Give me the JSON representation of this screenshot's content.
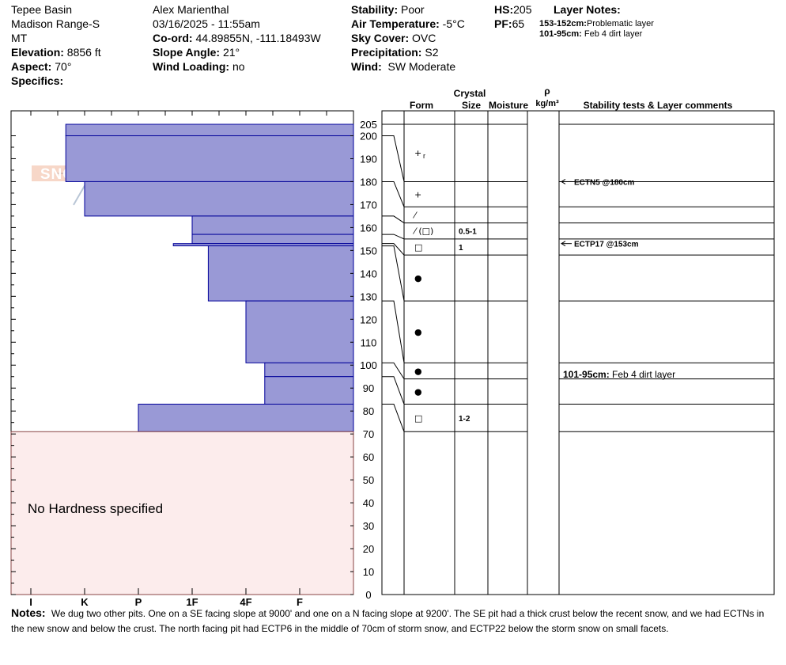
{
  "header": {
    "location": "Tepee Basin",
    "range": "Madison Range-S",
    "state": "MT",
    "elevation_label": "Elevation:",
    "elevation": "8856 ft",
    "aspect_label": "Aspect:",
    "aspect": "70°",
    "specifics_label": "Specifics:",
    "observer": "Alex Marienthal",
    "datetime": "03/16/2025 - 11:55am",
    "coord_label": "Co-ord:",
    "coord": "44.89855N, -111.18493W",
    "slope_label": "Slope Angle:",
    "slope": "21°",
    "wind_loading_label": "Wind Loading:",
    "wind_loading": "no",
    "stability_label": "Stability:",
    "stability": "Poor",
    "air_temp_label": "Air Temperature:",
    "air_temp": "-5°C",
    "sky_label": "Sky Cover:",
    "sky": "OVC",
    "precip_label": "Precipitation:",
    "precip": "S2",
    "wind_label": "Wind:",
    "wind": "SW Moderate",
    "hs_label": "HS:",
    "hs": "205",
    "pf_label": "PF:",
    "pf": "65",
    "layer_notes_title": "Layer Notes:",
    "layer_notes": [
      {
        "range": "153-152cm:",
        "text": "Problematic layer"
      },
      {
        "range": "101-95cm:",
        "text": "Feb 4 dirt layer"
      }
    ]
  },
  "logo_text": "SNOW PILOT",
  "colors": {
    "hardness_fill": "#9999d6",
    "hardness_stroke": "#000099",
    "no_hardness_fill": "#fcecec",
    "no_hardness_stroke": "#884444",
    "logo": "#b9c6d6",
    "logo_text": "#f0b69a"
  },
  "chart_data": {
    "type": "snow-profile",
    "y_axis": {
      "min": 0,
      "max": 205,
      "ticks": [
        0,
        10,
        20,
        30,
        40,
        50,
        60,
        70,
        80,
        90,
        100,
        110,
        120,
        130,
        140,
        150,
        160,
        170,
        180,
        190,
        200,
        205
      ]
    },
    "hardness_ticks": [
      "I",
      "K",
      "P",
      "1F",
      "4F",
      "F"
    ],
    "hardness_layers": [
      {
        "top": 205,
        "bottom": 200,
        "hardness": 5.35
      },
      {
        "top": 200,
        "bottom": 180,
        "hardness": 5.35
      },
      {
        "top": 180,
        "bottom": 165,
        "hardness": 5.0
      },
      {
        "top": 165,
        "bottom": 157,
        "hardness": 3.0
      },
      {
        "top": 157,
        "bottom": 153,
        "hardness": 3.0
      },
      {
        "top": 153,
        "bottom": 152,
        "hardness": 3.35
      },
      {
        "top": 152,
        "bottom": 128,
        "hardness": 2.7
      },
      {
        "top": 128,
        "bottom": 101,
        "hardness": 2.0
      },
      {
        "top": 101,
        "bottom": 95,
        "hardness": 1.65
      },
      {
        "top": 95,
        "bottom": 83,
        "hardness": 1.65
      },
      {
        "top": 83,
        "bottom": 71,
        "hardness": 4.0
      }
    ],
    "no_hardness": {
      "top": 71,
      "bottom": 0,
      "label": "No Hardness specified"
    },
    "columns": {
      "crystal": "Crystal",
      "form": "Form",
      "size": "Size",
      "moisture": "Moisture",
      "rho": "ρ",
      "density_unit": "kg/m³",
      "comments": "Stability tests & Layer comments"
    },
    "layer_rows": [
      {
        "top": 205,
        "bottom": 180,
        "form": "+",
        "form_sub": "r",
        "size": ""
      },
      {
        "top": 180,
        "bottom": 169,
        "form": "+",
        "form_sub": "",
        "size": ""
      },
      {
        "top": 169,
        "bottom": 162,
        "form": "⁄",
        "form_sub": "",
        "size": ""
      },
      {
        "top": 162,
        "bottom": 155,
        "form": "⁄ (□)",
        "form_sub": "",
        "size": "0.5-1"
      },
      {
        "top": 155,
        "bottom": 148,
        "form": "□",
        "form_sub": "",
        "size": "1"
      },
      {
        "top": 148,
        "bottom": 128,
        "form": "●",
        "form_sub": "",
        "size": ""
      },
      {
        "top": 128,
        "bottom": 101,
        "form": "●",
        "form_sub": "",
        "size": ""
      },
      {
        "top": 101,
        "bottom": 94,
        "form": "●",
        "form_sub": "",
        "size": ""
      },
      {
        "top": 94,
        "bottom": 83,
        "form": "●",
        "form_sub": "",
        "size": ""
      },
      {
        "top": 83,
        "bottom": 71,
        "form": "□",
        "form_sub": "",
        "size": "1-2"
      }
    ],
    "tests": [
      {
        "depth": 180,
        "label": "ECTN5 @180cm"
      },
      {
        "depth": 153,
        "label": "ECTP17 @153cm"
      }
    ],
    "layer_comments": [
      {
        "depth": 96,
        "range": "101-95cm:",
        "text": "Feb 4 dirt layer"
      }
    ]
  },
  "notes_label": "Notes:",
  "notes_text": "We dug two other pits. One on a SE facing slope at 9000' and one on a N facing slope at 9200'. The SE pit had a thick crust below the recent snow, and we had ECTNs in the new snow and below the crust. The north facing pit had ECTP6 in the middle of 70cm of storm snow, and ECTP22 below the storm snow on small facets."
}
